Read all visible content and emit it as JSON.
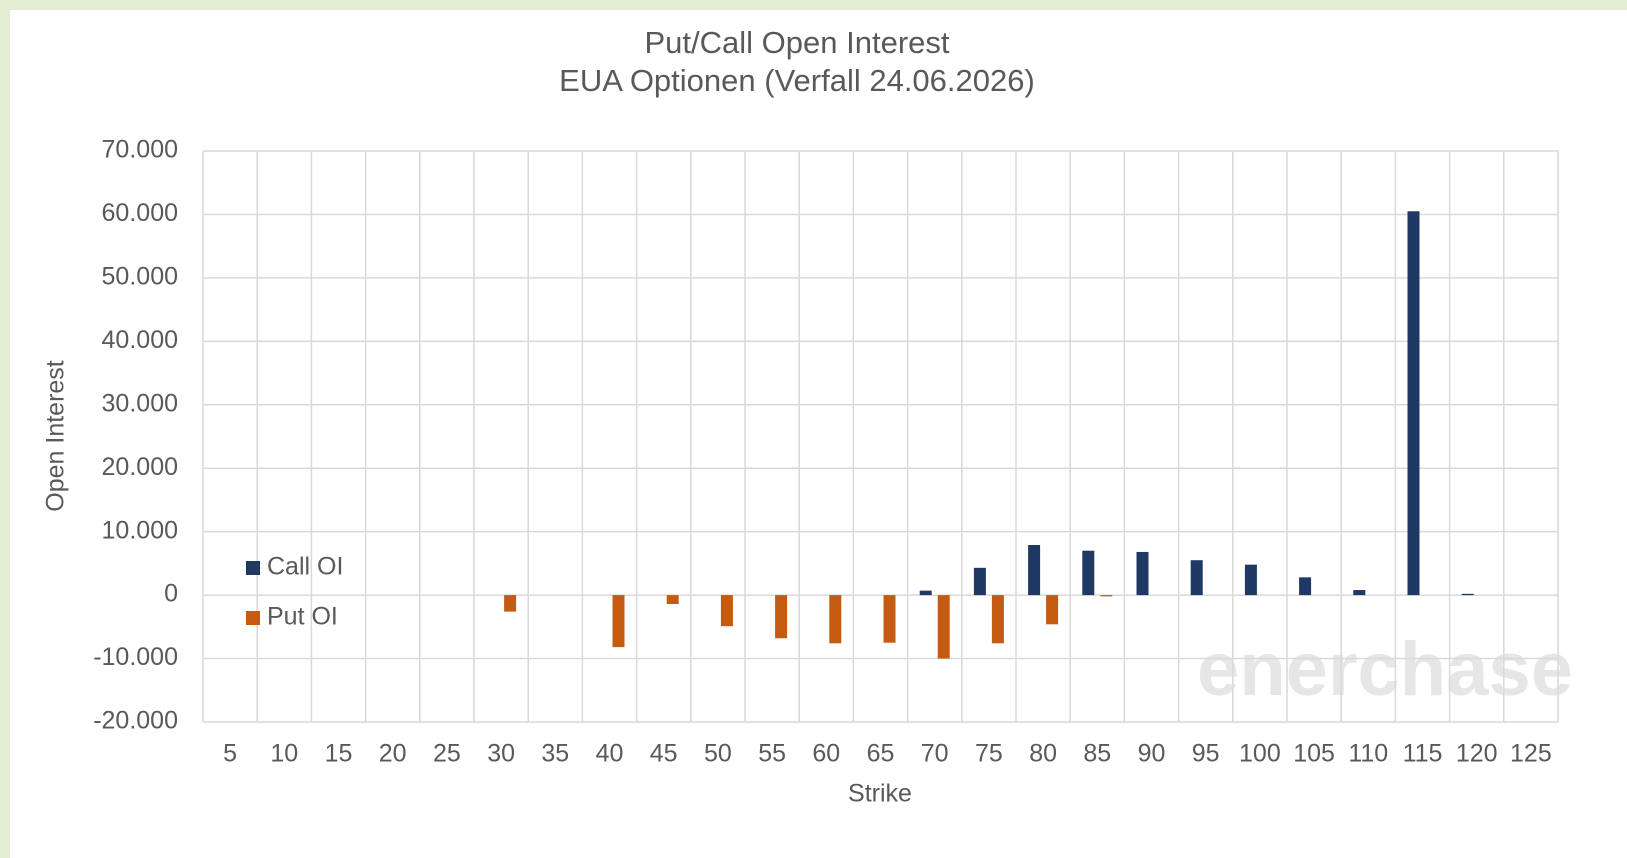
{
  "chart_data": {
    "type": "bar",
    "title": "Put/Call Open Interest",
    "subtitle": "EUA Optionen (Verfall 24.06.2026)",
    "x_label": "Strike",
    "y_label": "Open Interest",
    "watermark": "enerchase",
    "categories": [
      "5",
      "10",
      "15",
      "20",
      "25",
      "30",
      "35",
      "40",
      "45",
      "50",
      "55",
      "60",
      "65",
      "70",
      "75",
      "80",
      "85",
      "90",
      "95",
      "100",
      "105",
      "110",
      "115",
      "120",
      "125"
    ],
    "series": [
      {
        "name": "Call OI",
        "color": "#1f3864",
        "values": [
          0,
          0,
          0,
          0,
          0,
          0,
          0,
          0,
          0,
          0,
          0,
          0,
          0,
          700,
          4300,
          7900,
          7000,
          6800,
          5500,
          4800,
          2800,
          800,
          60500,
          200,
          0
        ]
      },
      {
        "name": "Put OI",
        "color": "#c55a11",
        "values": [
          0,
          0,
          0,
          0,
          0,
          -2600,
          0,
          -8200,
          -1400,
          -4900,
          -6800,
          -7600,
          -7500,
          -10000,
          -7600,
          -4600,
          -200,
          0,
          0,
          0,
          0,
          0,
          0,
          0,
          0
        ]
      }
    ],
    "ylim": [
      -20000,
      70000
    ],
    "yticks": [
      {
        "value": -20000,
        "label": "-20.000"
      },
      {
        "value": -10000,
        "label": "-10.000"
      },
      0,
      {
        "value": 10000,
        "label": "10.000"
      },
      {
        "value": 20000,
        "label": "20.000"
      },
      {
        "value": 30000,
        "label": "30.000"
      },
      {
        "value": 40000,
        "label": "40.000"
      },
      {
        "value": 50000,
        "label": "50.000"
      },
      {
        "value": 60000,
        "label": "60.000"
      },
      {
        "value": 70000,
        "label": "70.000"
      }
    ],
    "grid": true,
    "legend": "left"
  }
}
